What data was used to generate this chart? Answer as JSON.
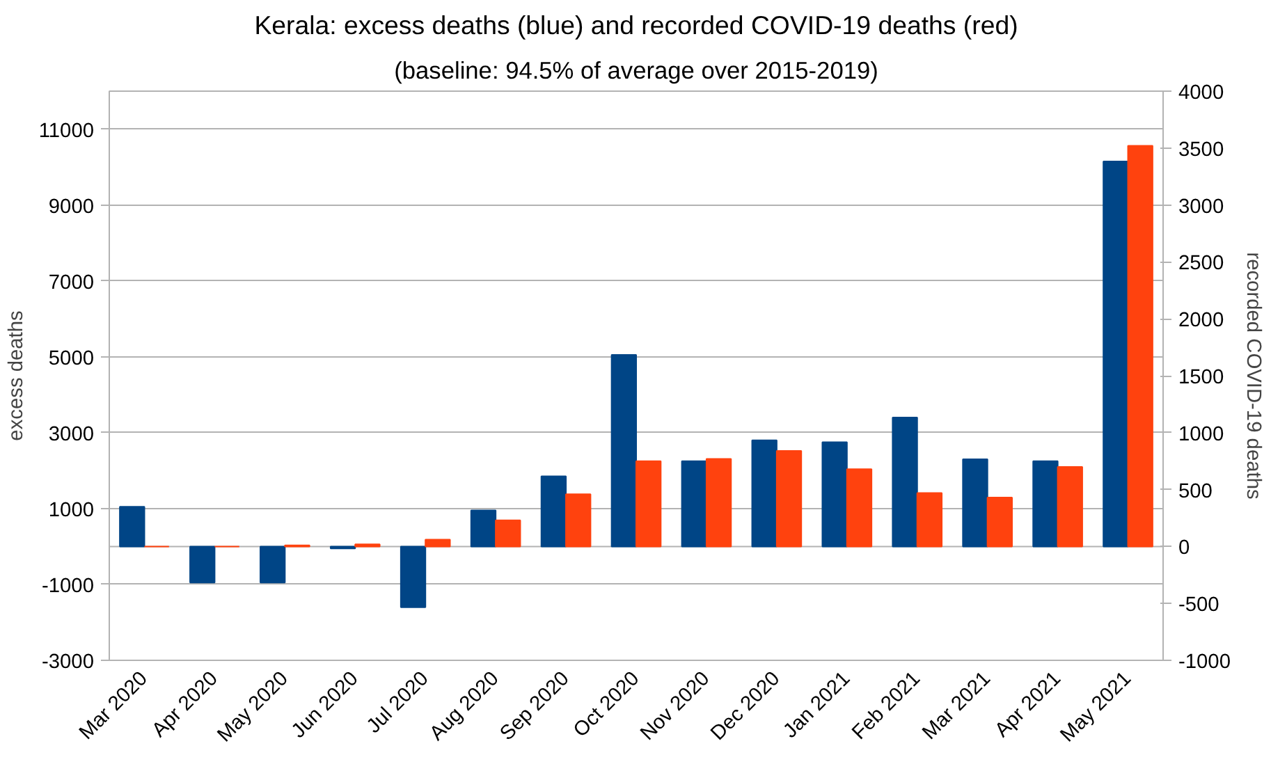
{
  "chart_data": {
    "type": "bar",
    "title": "Kerala: excess deaths (blue) and recorded COVID-19 deaths (red)",
    "subtitle": "(baseline: 94.5% of average over 2015-2019)",
    "ylabel": "excess deaths",
    "y2label": "recorded COVID-19 deaths",
    "categories": [
      "Mar 2020",
      "Apr 2020",
      "May 2020",
      "Jun 2020",
      "Jul 2020",
      "Aug 2020",
      "Sep 2020",
      "Oct 2020",
      "Nov 2020",
      "Dec 2020",
      "Jan 2021",
      "Feb 2021",
      "Mar 2021",
      "Apr 2021",
      "May 2021"
    ],
    "series": [
      {
        "color": "#004586",
        "values": [
          1050,
          -950,
          -950,
          -50,
          -1600,
          950,
          1850,
          5050,
          2250,
          2800,
          2750,
          3400,
          2300,
          2250,
          10150
        ]
      },
      {
        "color": "#ff420e",
        "axis": "y2",
        "values": [
          0,
          0,
          10,
          20,
          60,
          230,
          460,
          750,
          770,
          840,
          680,
          470,
          430,
          700,
          3520
        ]
      }
    ],
    "ylim": [
      -3000,
      12000
    ],
    "yticks": [
      -3000,
      -1000,
      1000,
      3000,
      5000,
      7000,
      9000,
      11000
    ],
    "y2lim": [
      -1000,
      4000
    ],
    "y2ticks": [
      -1000,
      -500,
      0,
      500,
      1000,
      1500,
      2000,
      2500,
      3000,
      3500,
      4000
    ],
    "grid": "y"
  }
}
